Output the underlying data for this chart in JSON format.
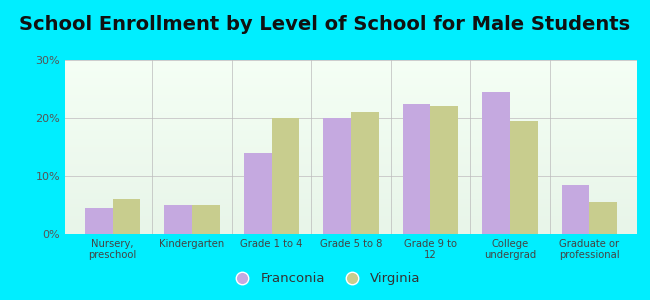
{
  "title": "School Enrollment by Level of School for Male Students",
  "categories": [
    "Nursery,\npreschool",
    "Kindergarten",
    "Grade 1 to 4",
    "Grade 5 to 8",
    "Grade 9 to\n12",
    "College\nundergrad",
    "Graduate or\nprofessional"
  ],
  "franconia": [
    4.5,
    5.0,
    14.0,
    20.0,
    22.5,
    24.5,
    8.5
  ],
  "virginia": [
    6.0,
    5.0,
    20.0,
    21.0,
    22.0,
    19.5,
    5.5
  ],
  "franconia_color": "#c5a9e0",
  "virginia_color": "#c8cd8e",
  "background_color": "#00eeff",
  "plot_bg_top": "#e8f5e9",
  "plot_bg_bottom": "#f5fff5",
  "ylim": [
    0,
    30
  ],
  "yticks": [
    0,
    10,
    20,
    30
  ],
  "ytick_labels": [
    "0%",
    "10%",
    "20%",
    "30%"
  ],
  "title_fontsize": 14,
  "legend_labels": [
    "Franconia",
    "Virginia"
  ],
  "bar_width": 0.35
}
